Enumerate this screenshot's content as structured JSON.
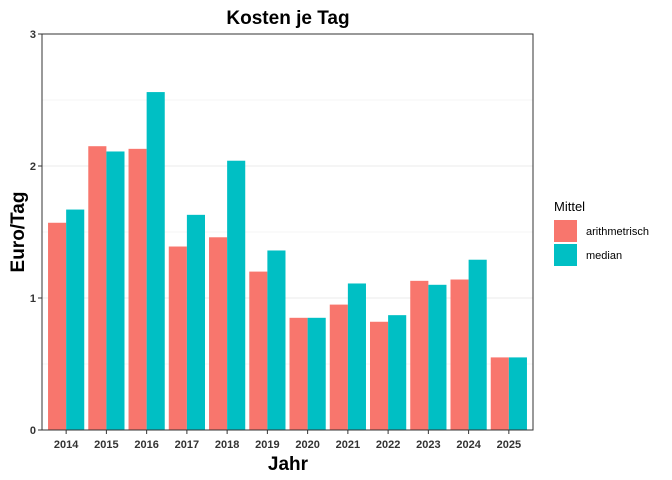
{
  "chart_data": {
    "type": "bar",
    "title": "Kosten je Tag",
    "xlabel": "Jahr",
    "ylabel": "Euro/Tag",
    "categories": [
      "2014",
      "2015",
      "2016",
      "2017",
      "2018",
      "2019",
      "2020",
      "2021",
      "2022",
      "2023",
      "2024",
      "2025"
    ],
    "series": [
      {
        "name": "arithmetrisch",
        "color": "#F8766D",
        "values": [
          1.57,
          2.15,
          2.13,
          1.39,
          1.46,
          1.2,
          0.85,
          0.95,
          0.82,
          1.13,
          1.14,
          0.55
        ]
      },
      {
        "name": "median",
        "color": "#00BFC4",
        "values": [
          1.67,
          2.11,
          2.56,
          1.63,
          2.04,
          1.36,
          0.85,
          1.11,
          0.87,
          1.1,
          1.29,
          0.55
        ]
      }
    ],
    "ylim": [
      0,
      3
    ],
    "yticks": [
      "0",
      "1",
      "2",
      "3"
    ],
    "grid": true,
    "legend": {
      "title": "Mittel",
      "position": "right"
    }
  }
}
